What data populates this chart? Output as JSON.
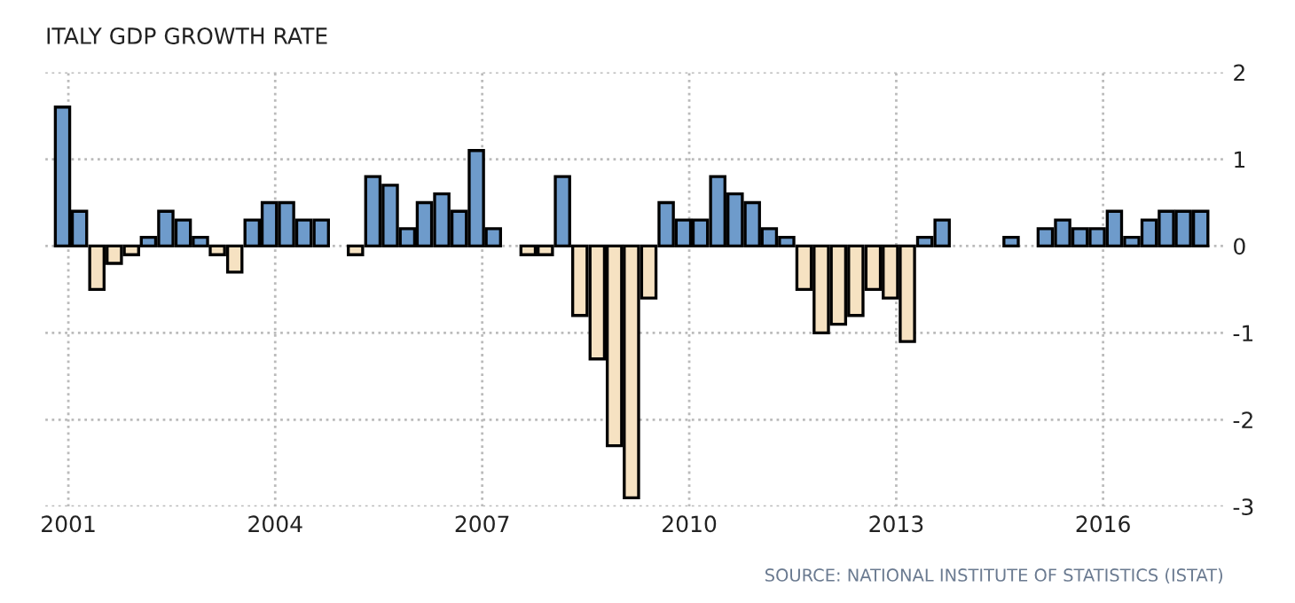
{
  "chart_data": {
    "type": "bar",
    "title": "ITALY GDP GROWTH RATE",
    "x": [
      "2000-12",
      "2001-03",
      "2001-06",
      "2001-09",
      "2001-12",
      "2002-03",
      "2002-06",
      "2002-09",
      "2002-12",
      "2003-03",
      "2003-06",
      "2003-09",
      "2003-12",
      "2004-03",
      "2004-06",
      "2004-09",
      "2004-12",
      "2005-03",
      "2005-06",
      "2005-09",
      "2005-12",
      "2006-03",
      "2006-06",
      "2006-09",
      "2006-12",
      "2007-03",
      "2007-06",
      "2007-09",
      "2007-12",
      "2008-03",
      "2008-06",
      "2008-09",
      "2008-12",
      "2009-03",
      "2009-06",
      "2009-09",
      "2009-12",
      "2010-03",
      "2010-06",
      "2010-09",
      "2010-12",
      "2011-03",
      "2011-06",
      "2011-09",
      "2011-12",
      "2012-03",
      "2012-06",
      "2012-09",
      "2012-12",
      "2013-03",
      "2013-06",
      "2013-09",
      "2013-12",
      "2014-03",
      "2014-06",
      "2014-09",
      "2014-12",
      "2015-03",
      "2015-06",
      "2015-09",
      "2015-12",
      "2016-03",
      "2016-06",
      "2016-09",
      "2016-12",
      "2017-03",
      "2017-06"
    ],
    "values": [
      1.6,
      0.4,
      -0.5,
      -0.2,
      -0.1,
      0.1,
      0.4,
      0.3,
      0.1,
      -0.1,
      -0.3,
      0.3,
      0.5,
      0.5,
      0.3,
      0.3,
      null,
      -0.1,
      0.8,
      0.7,
      0.2,
      0.5,
      0.6,
      0.4,
      1.1,
      0.2,
      null,
      -0.1,
      -0.1,
      0.8,
      -0.8,
      -1.3,
      -2.3,
      -2.9,
      -0.6,
      0.5,
      0.3,
      0.3,
      0.8,
      0.6,
      0.5,
      0.2,
      0.1,
      -0.5,
      -1.0,
      -0.9,
      -0.8,
      -0.5,
      -0.6,
      -1.1,
      0.1,
      0.3,
      null,
      null,
      null,
      0.1,
      null,
      0.2,
      0.3,
      0.2,
      0.2,
      0.4,
      0.1,
      0.3,
      0.4,
      0.4,
      0.4
    ],
    "colors": [
      "#6e9bcb",
      "#6e9bcb",
      "#f6e2c2",
      "#f6e2c2",
      "#f6e2c2",
      "#6e9bcb",
      "#6e9bcb",
      "#6e9bcb",
      "#6e9bcb",
      "#f6e2c2",
      "#f6e2c2",
      "#6e9bcb",
      "#6e9bcb",
      "#6e9bcb",
      "#6e9bcb",
      "#6e9bcb",
      "#6e9bcb",
      "#f6e2c2",
      "#6e9bcb",
      "#6e9bcb",
      "#6e9bcb",
      "#6e9bcb",
      "#6e9bcb",
      "#6e9bcb",
      "#6e9bcb",
      "#6e9bcb",
      "#6e9bcb",
      "#f6e2c2",
      "#f6e2c2",
      "#6e9bcb",
      "#f6e2c2",
      "#f6e2c2",
      "#f6e2c2",
      "#f6e2c2",
      "#f6e2c2",
      "#6e9bcb",
      "#6e9bcb",
      "#6e9bcb",
      "#6e9bcb",
      "#6e9bcb",
      "#6e9bcb",
      "#6e9bcb",
      "#6e9bcb",
      "#f6e2c2",
      "#f6e2c2",
      "#f6e2c2",
      "#f6e2c2",
      "#f6e2c2",
      "#f6e2c2",
      "#f6e2c2",
      "#6e9bcb",
      "#6e9bcb",
      "#6e9bcb",
      "#6e9bcb",
      "#6e9bcb",
      "#6e9bcb",
      "#6e9bcb",
      "#6e9bcb",
      "#6e9bcb",
      "#6e9bcb",
      "#6e9bcb",
      "#6e9bcb",
      "#6e9bcb",
      "#6e9bcb",
      "#6e9bcb",
      "#6e9bcb",
      "#6e9bcb"
    ],
    "xlim": [
      "2000-09",
      "2017-10"
    ],
    "xticks": [
      {
        "value": "2001",
        "label": "2001"
      },
      {
        "value": "2004",
        "label": "2004"
      },
      {
        "value": "2007",
        "label": "2007"
      },
      {
        "value": "2010",
        "label": "2010"
      },
      {
        "value": "2013",
        "label": "2013"
      },
      {
        "value": "2016",
        "label": "2016"
      }
    ],
    "ylim": [
      -3,
      2
    ],
    "yticks": [
      -3,
      -2,
      -1,
      0,
      1,
      2
    ],
    "grid": true,
    "annotations": [
      "SOURCE: NATIONAL INSTITUTE OF STATISTICS (ISTAT)"
    ]
  }
}
